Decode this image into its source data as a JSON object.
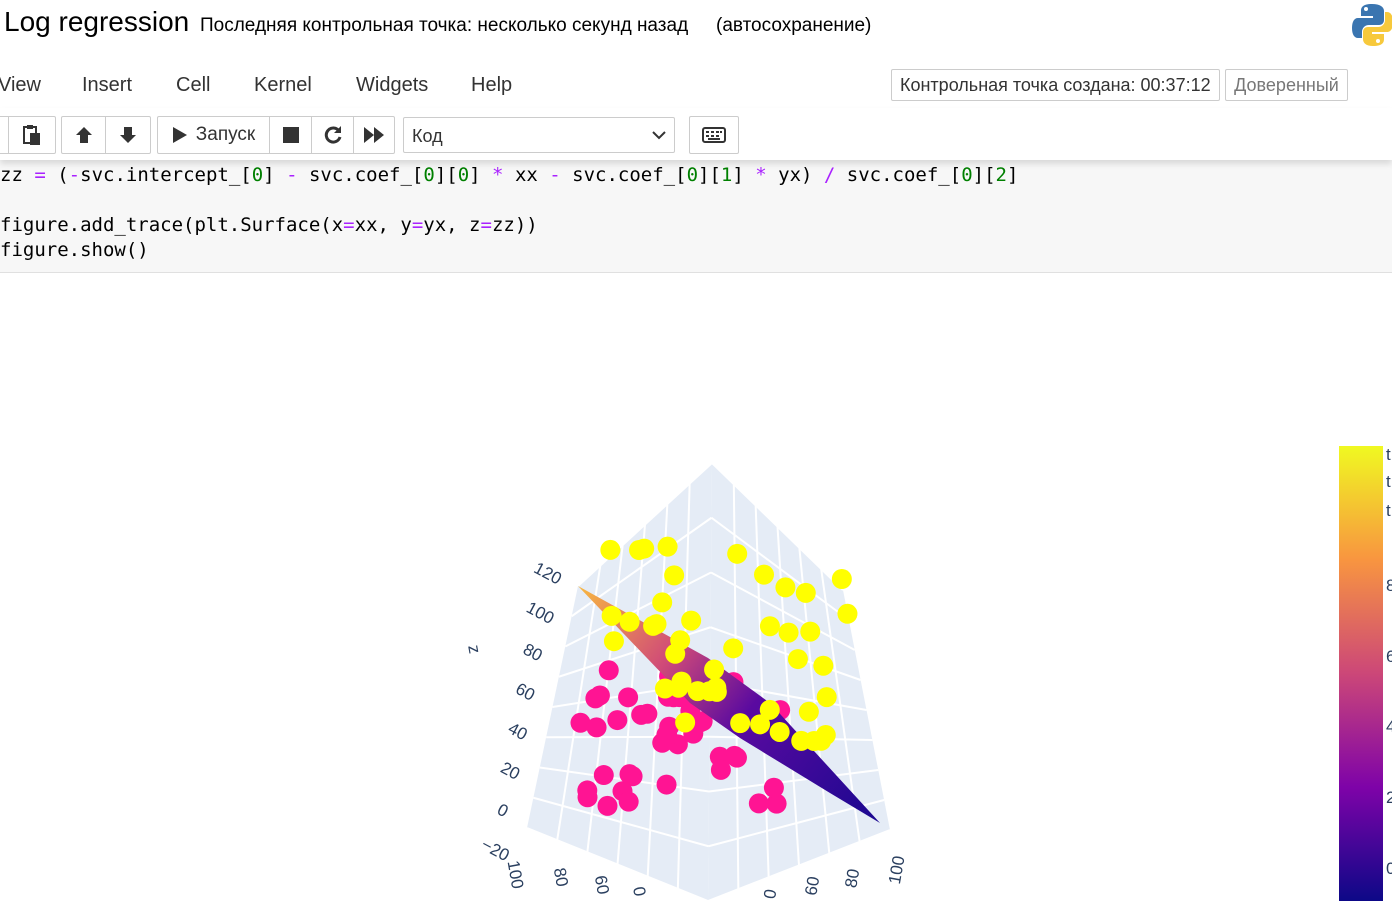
{
  "header": {
    "notebook_title": "Log regression",
    "checkpoint": "Последняя контрольная точка: несколько секунд назад",
    "autosave": "(автосохранение)",
    "logo_icon": "python-logo-icon"
  },
  "menu": {
    "items": [
      "View",
      "Insert",
      "Cell",
      "Kernel",
      "Widgets",
      "Help"
    ],
    "checkpoint_created": "Контрольная точка создана: 00:37:12",
    "trusted": "Доверенный"
  },
  "toolbar": {
    "run_label": "Запуск",
    "cell_type": "Код",
    "icons": [
      "copy-icon",
      "paste-icon",
      "arrow-up-icon",
      "arrow-down-icon",
      "play-icon",
      "stop-icon",
      "restart-icon",
      "fast-forward-icon",
      "keyboard-icon"
    ]
  },
  "code": {
    "line1_parts": [
      "zz",
      " = ",
      "(",
      "-",
      "svc.intercept_[",
      "0",
      "] ",
      "-",
      " svc.coef_[",
      "0",
      "][",
      "0",
      "] ",
      "*",
      " xx ",
      "-",
      " svc.coef_[",
      "0",
      "][",
      "1",
      "] ",
      "*",
      " yx) ",
      "/",
      " svc.coef_[",
      "0",
      "][",
      "2",
      "]"
    ],
    "line2_parts": [
      "figure.add_trace(plt.Surface(x",
      "=",
      "xx, y",
      "=",
      "yx, z",
      "=",
      "zz))"
    ],
    "line3": "figure.show()"
  },
  "chart_data": {
    "type": "scatter3d",
    "z_axis_label": "z",
    "z_ticks": [
      "120",
      "100",
      "80",
      "60",
      "40",
      "20",
      "0",
      "−20"
    ],
    "x_ticks_visible": [
      "100",
      "80",
      "60",
      "0"
    ],
    "y_ticks_visible": [
      "0",
      "60",
      "80",
      "100"
    ],
    "series": [
      {
        "color": "#ff1493",
        "class": "0",
        "approx_count": 45
      },
      {
        "color": "#ffff00",
        "class": "1",
        "approx_count": 50
      }
    ],
    "surface": {
      "type": "plane",
      "colorscale": "plasma",
      "colors": [
        "#0d0887",
        "#7e03a8",
        "#cc4778",
        "#f89540",
        "#f0f921"
      ]
    },
    "colorbar": {
      "colorscale": "plasma",
      "partial_tick_glyphs": [
        "t",
        "t",
        "t",
        "8",
        "6",
        "4",
        "2",
        "0"
      ]
    }
  }
}
